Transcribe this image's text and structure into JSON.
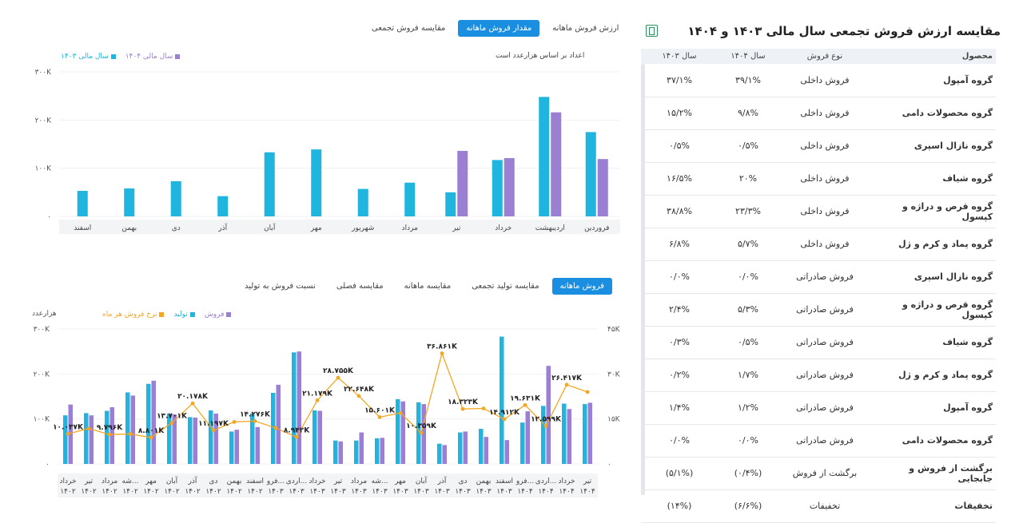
{
  "colors": {
    "blue": "#1fb5de",
    "purple": "#9a7fd3",
    "orange": "#f5a623",
    "tab_active": "#1a8ee1"
  },
  "table": {
    "title": "مقایسه ارزش فروش تجمعی سال مالی ۱۴۰۳ و ۱۴۰۴",
    "export_icon": "excel-export-icon",
    "headers": {
      "product": "محصول",
      "type": "نوع فروش",
      "y1404": "سال ۱۴۰۴",
      "y1403": "سال ۱۴۰۳"
    },
    "rows": [
      {
        "product": "گروه آمپول",
        "type": "فروش داخلی",
        "y1404": "۳۹/۱%",
        "y1403": "۳۷/۱%"
      },
      {
        "product": "گروه محصولات دامی",
        "type": "فروش داخلی",
        "y1404": "۹/۸%",
        "y1403": "۱۵/۲%"
      },
      {
        "product": "گروه نازال اسپری",
        "type": "فروش داخلی",
        "y1404": "۰/۵%",
        "y1403": "۰/۵%"
      },
      {
        "product": "گروه شیاف",
        "type": "فروش داخلی",
        "y1404": "۲۰%",
        "y1403": "۱۶/۵%"
      },
      {
        "product": "گروه قرص و دراژه و کپسول",
        "type": "فروش داخلی",
        "y1404": "۲۳/۳%",
        "y1403": "۳۸/۸%"
      },
      {
        "product": "گروه پماد و کرم و ژل",
        "type": "فروش داخلی",
        "y1404": "۵/۷%",
        "y1403": "۶/۸%"
      },
      {
        "product": "گروه نازال اسپری",
        "type": "فروش صادراتی",
        "y1404": "۰/۰%",
        "y1403": "۰/۰%"
      },
      {
        "product": "گروه قرص و دراژه و کپسول",
        "type": "فروش صادراتی",
        "y1404": "۵/۳%",
        "y1403": "۲/۴%"
      },
      {
        "product": "گروه شیاف",
        "type": "فروش صادراتی",
        "y1404": "۰/۵%",
        "y1403": "۰/۳%"
      },
      {
        "product": "گروه پماد و کرم و ژل",
        "type": "فروش صادراتی",
        "y1404": "۱/۷%",
        "y1403": "۰/۲%"
      },
      {
        "product": "گروه آمپول",
        "type": "فروش صادراتی",
        "y1404": "۱/۲%",
        "y1403": "۱/۴%"
      },
      {
        "product": "گروه محصولات دامی",
        "type": "فروش صادراتی",
        "y1404": "۰/۰%",
        "y1403": "۰/۰%"
      },
      {
        "product": "برگشت از فروش و جابجایی",
        "type": "برگشت از فروش",
        "y1404": "(۰/۴%)",
        "y1403": "(۵/۱%)"
      },
      {
        "product": "تخفیفات",
        "type": "تخفیفات",
        "y1404": "(۶/۶%)",
        "y1403": "(۱۴%)"
      }
    ]
  },
  "top_chart": {
    "tabs": [
      "ارزش فروش ماهانه",
      "مقدار فروش ماهانه",
      "مقایسه فروش تجمعی"
    ],
    "active_tab": 1,
    "note": "اعداد بر اساس هزارعدد است",
    "legend": [
      "سال مالی ۱۴۰۴",
      "سال مالی ۱۴۰۳"
    ]
  },
  "bottom_chart": {
    "tabs": [
      "فروش ماهانه",
      "مقایسه تولید تجمعی",
      "مقایسه ماهانه",
      "مقایسه فصلی",
      "نسبت فروش به تولید"
    ],
    "active_tab": 0,
    "unit": "هزارعدد",
    "legend": [
      "فروش",
      "تولید",
      "نرخ فروش هر ماه"
    ]
  },
  "chart_data": [
    {
      "type": "bar",
      "categories": [
        "فروردین",
        "اردیبهشت",
        "خرداد",
        "تیر",
        "مرداد",
        "شهریور",
        "مهر",
        "آبان",
        "آذر",
        "دی",
        "بهمن",
        "اسفند"
      ],
      "series": [
        {
          "name": "سال مالی ۱۴۰۳",
          "values": [
            175,
            248,
            117,
            50,
            70,
            57,
            139,
            133,
            42,
            73,
            58,
            53
          ]
        },
        {
          "name": "سال مالی ۱۴۰۴",
          "values": [
            119,
            216,
            121,
            136,
            null,
            null,
            null,
            null,
            null,
            null,
            null,
            null
          ]
        }
      ],
      "ylim": [
        0,
        300
      ],
      "ytick_labels": [
        "۰",
        "۱۰۰K",
        "۲۰۰K",
        "۳۰۰K"
      ]
    },
    {
      "type": "bar",
      "categories": [
        "خرداد ۱۴۰۲",
        "تیر ۱۴۰۲",
        "مرداد ۱۴۰۲",
        "شه... ۱۴۰۲",
        "مهر ۱۴۰۲",
        "آبان ۱۴۰۲",
        "آذر ۱۴۰۲",
        "دی ۱۴۰۲",
        "بهمن ۱۴۰۲",
        "اسفند ۱۴۰۲",
        "فرو... ۱۴۰۳",
        "اردی... ۱۴۰۳",
        "خرداد ۱۴۰۳",
        "تیر ۱۴۰۳",
        "مرداد ۱۴۰۳",
        "شه... ۱۴۰۳",
        "مهر ۱۴۰۳",
        "آبان ۱۴۰۳",
        "آذر ۱۴۰۳",
        "دی ۱۴۰۳",
        "بهمن ۱۴۰۳",
        "اسفند ۱۴۰۳",
        "فرو... ۱۴۰۴",
        "اردی... ۱۴۰۴",
        "خرداد ۱۴۰۴",
        "تیر ۱۴۰۴"
      ],
      "series": [
        {
          "name": "تولید",
          "axis": "left",
          "values": [
            108,
            113,
            118,
            159,
            178,
            112,
            104,
            119,
            72,
            112,
            158,
            248,
            119,
            52,
            52,
            57,
            144,
            137,
            45,
            70,
            78,
            283,
            92,
            129,
            134,
            133
          ]
        },
        {
          "name": "فروش",
          "axis": "left",
          "values": [
            132,
            108,
            126,
            152,
            185,
            110,
            103,
            112,
            76,
            82,
            176,
            250,
            118,
            50,
            70,
            58,
            139,
            133,
            42,
            72,
            60,
            53,
            117,
            218,
            122,
            136
          ]
        },
        {
          "name": "نرخ فروش هر ماه",
          "axis": "right",
          "values": [
            10.037,
            11.8,
            9.796,
            10.0,
            8.801,
            13.701,
            20.178,
            11.197,
            14.0,
            14.276,
            12.0,
            8.942,
            21.179,
            28.755,
            22.648,
            15.601,
            17.0,
            10.359,
            36.861,
            18.323,
            18.5,
            14.912,
            19.631,
            12.599,
            26.417,
            24.0
          ]
        }
      ],
      "ylim_left": [
        0,
        300
      ],
      "ylim_right": [
        0,
        45
      ],
      "ytick_labels_left": [
        "۰",
        "۱۰۰K",
        "۲۰۰K",
        "۳۰۰K"
      ],
      "ytick_labels_right": [
        "۰",
        "۱۵K",
        "۳۰K",
        "۴۵K"
      ],
      "data_labels": [
        {
          "index": 0,
          "text": "۱۰.۰۳۷K"
        },
        {
          "index": 2,
          "text": "۹.۷۹۶K"
        },
        {
          "index": 4,
          "text": "۸.۸۰۱K"
        },
        {
          "index": 5,
          "text": "۱۳.۷۰۱K"
        },
        {
          "index": 6,
          "text": "۲۰.۱۷۸K"
        },
        {
          "index": 7,
          "text": "۱۱.۱۹۷K"
        },
        {
          "index": 9,
          "text": "۱۴.۲۷۶K"
        },
        {
          "index": 11,
          "text": "۸.۹۴۲K"
        },
        {
          "index": 12,
          "text": "۲۱.۱۷۹K"
        },
        {
          "index": 13,
          "text": "۲۸.۷۵۵K"
        },
        {
          "index": 14,
          "text": "۲۲.۶۴۸K"
        },
        {
          "index": 15,
          "text": "۱۵.۶۰۱K"
        },
        {
          "index": 17,
          "text": "۱۰.۳۵۹K"
        },
        {
          "index": 18,
          "text": "۳۶.۸۶۱K"
        },
        {
          "index": 19,
          "text": "۱۸.۳۲۳K"
        },
        {
          "index": 21,
          "text": "۱۴.۹۱۲K"
        },
        {
          "index": 22,
          "text": "۱۹.۶۳۱K"
        },
        {
          "index": 23,
          "text": "۱۲.۵۹۹K"
        },
        {
          "index": 24,
          "text": "۲۶.۴۱۷K"
        }
      ]
    }
  ]
}
